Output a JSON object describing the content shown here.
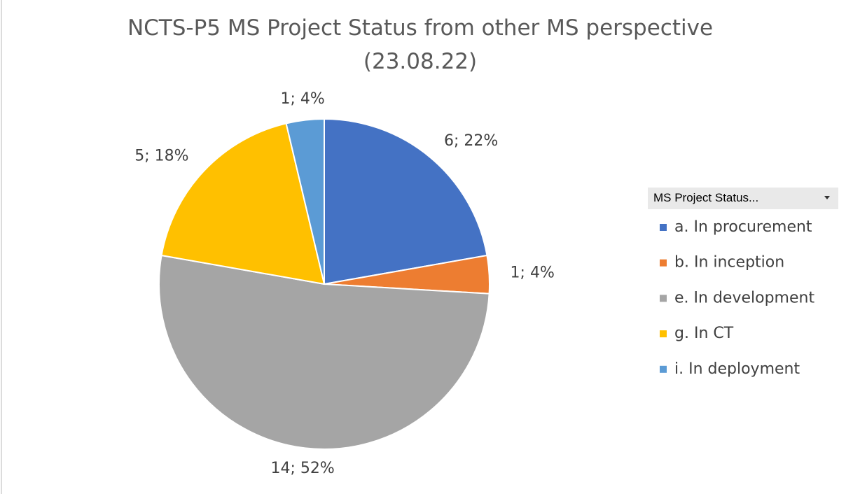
{
  "chart_data": {
    "type": "pie",
    "title": "NCTS-P5 MS Project Status from other MS perspective (23.08.22)",
    "legend_title": "MS Project Status...",
    "legend": "right",
    "categories": [
      "a. In procurement",
      "b. In inception",
      "e. In development",
      "g. In CT",
      "i. In deployment"
    ],
    "values": [
      6,
      1,
      14,
      5,
      1
    ],
    "value_labels": [
      "6; 22%",
      "1; 4%",
      "14; 52%",
      "5; 18%",
      "1; 4%"
    ],
    "colors": [
      "#4472c4",
      "#ed7d31",
      "#a5a5a5",
      "#ffc000",
      "#5b9bd5"
    ]
  }
}
